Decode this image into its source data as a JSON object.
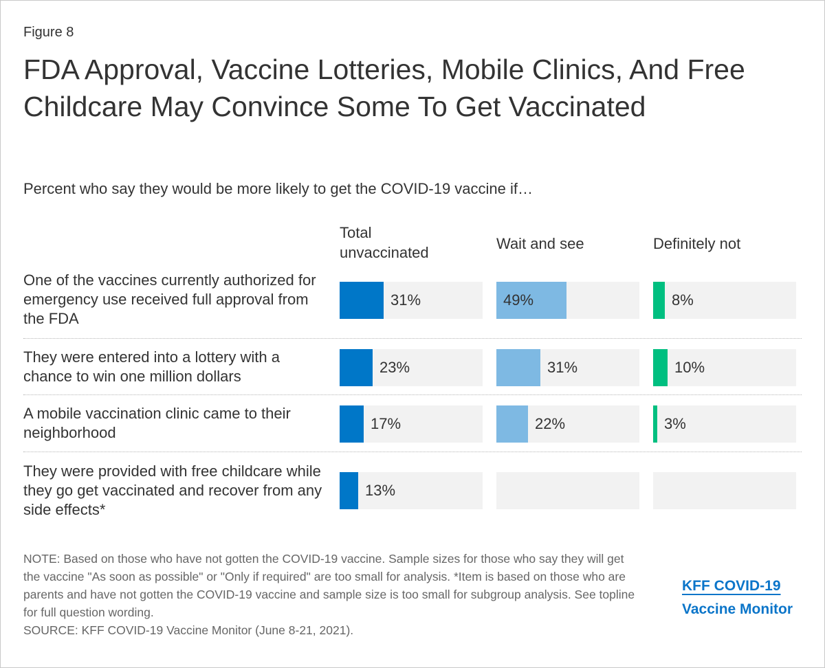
{
  "figure_label": "Figure 8",
  "colors": {
    "total": "#0077c8",
    "wait": "#7eb9e3",
    "notsure": "#00bf80",
    "track": "#f2f2f2"
  },
  "chart_data": {
    "type": "bar",
    "orientation": "horizontal",
    "title": "FDA Approval, Vaccine Lotteries, Mobile Clinics, And Free Childcare May Convince Some To Get Vaccinated",
    "subtitle": "Percent who say they would be more likely to get the COVID-19 vaccine if…",
    "xlim": [
      0,
      100
    ],
    "categories": [
      "One of the vaccines currently authorized for emergency use received full approval from the FDA",
      "They were entered into a lottery with a chance to win one million dollars",
      "A mobile vaccination clinic came to their neighborhood",
      "They were provided with free childcare while they go get vaccinated and recover from any side effects*"
    ],
    "series": [
      {
        "name": "Total unvaccinated",
        "values": [
          31,
          23,
          17,
          13
        ],
        "labels": [
          "31%",
          "23%",
          "17%",
          "13%"
        ]
      },
      {
        "name": "Wait and see",
        "values": [
          49,
          31,
          22,
          null
        ],
        "labels": [
          "49%",
          "31%",
          "22%",
          ""
        ]
      },
      {
        "name": "Definitely not",
        "values": [
          8,
          10,
          3,
          null
        ],
        "labels": [
          "8%",
          "10%",
          "3%",
          ""
        ]
      }
    ]
  },
  "column_headers": [
    "Total\nunvaccinated",
    "Wait and see",
    "Definitely not"
  ],
  "note": "NOTE: Based on those who have not gotten the COVID-19 vaccine. Sample sizes for those who say they will get the vaccine \"As soon as possible\" or \"Only if required\" are too small for analysis. *Item is based on those who are parents and have not gotten the COVID-19 vaccine and sample size is too small for subgroup analysis. See topline for full question wording.",
  "source": "SOURCE: KFF COVID-19 Vaccine Monitor (June 8-21, 2021).",
  "logo": {
    "line1": "KFF COVID-19",
    "line2": "Vaccine Monitor"
  }
}
